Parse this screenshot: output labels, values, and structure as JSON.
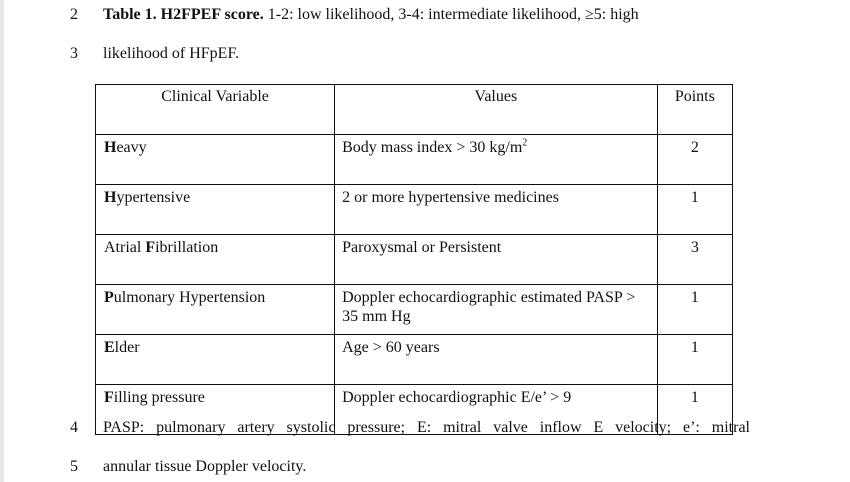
{
  "lines": [
    {
      "num": "2",
      "title": "Table 1. H2FPEF score.",
      "text": " 1-2: low likelihood, 3-4: intermediate likelihood, ≥5: high"
    },
    {
      "num": "3",
      "text": "likelihood of HFpEF."
    },
    {
      "num": "4",
      "text": "PASP: pulmonary artery systolic pressure; E: mitral valve inflow E velocity; e’: mitral"
    },
    {
      "num": "5",
      "text": "annular tissue Doppler velocity."
    }
  ],
  "table": {
    "headers": [
      "Clinical Variable",
      "Values",
      "Points"
    ],
    "rows": [
      {
        "initial": "H",
        "rest": "eavy",
        "value": "Body mass index > 30 kg/m",
        "value_sup": "2",
        "points": "2"
      },
      {
        "initial": "H",
        "rest": "ypertensive",
        "value": "2 or more hypertensive medicines",
        "value_sup": "",
        "points": "1"
      },
      {
        "prefix": "Atrial ",
        "initial": "F",
        "rest": "ibrillation",
        "value": "Paroxysmal or Persistent",
        "value_sup": "",
        "points": "3"
      },
      {
        "initial": "P",
        "rest": "ulmonary Hypertension",
        "value": "Doppler echocardiographic estimated PASP > 35 mm Hg",
        "value_sup": "",
        "points": "1"
      },
      {
        "initial": "E",
        "rest": "lder",
        "value": "Age > 60 years",
        "value_sup": "",
        "points": "1"
      },
      {
        "initial": "F",
        "rest": "illing pressure",
        "value": "Doppler echocardiographic E/e’ > 9",
        "value_sup": "",
        "points": "1"
      }
    ]
  }
}
